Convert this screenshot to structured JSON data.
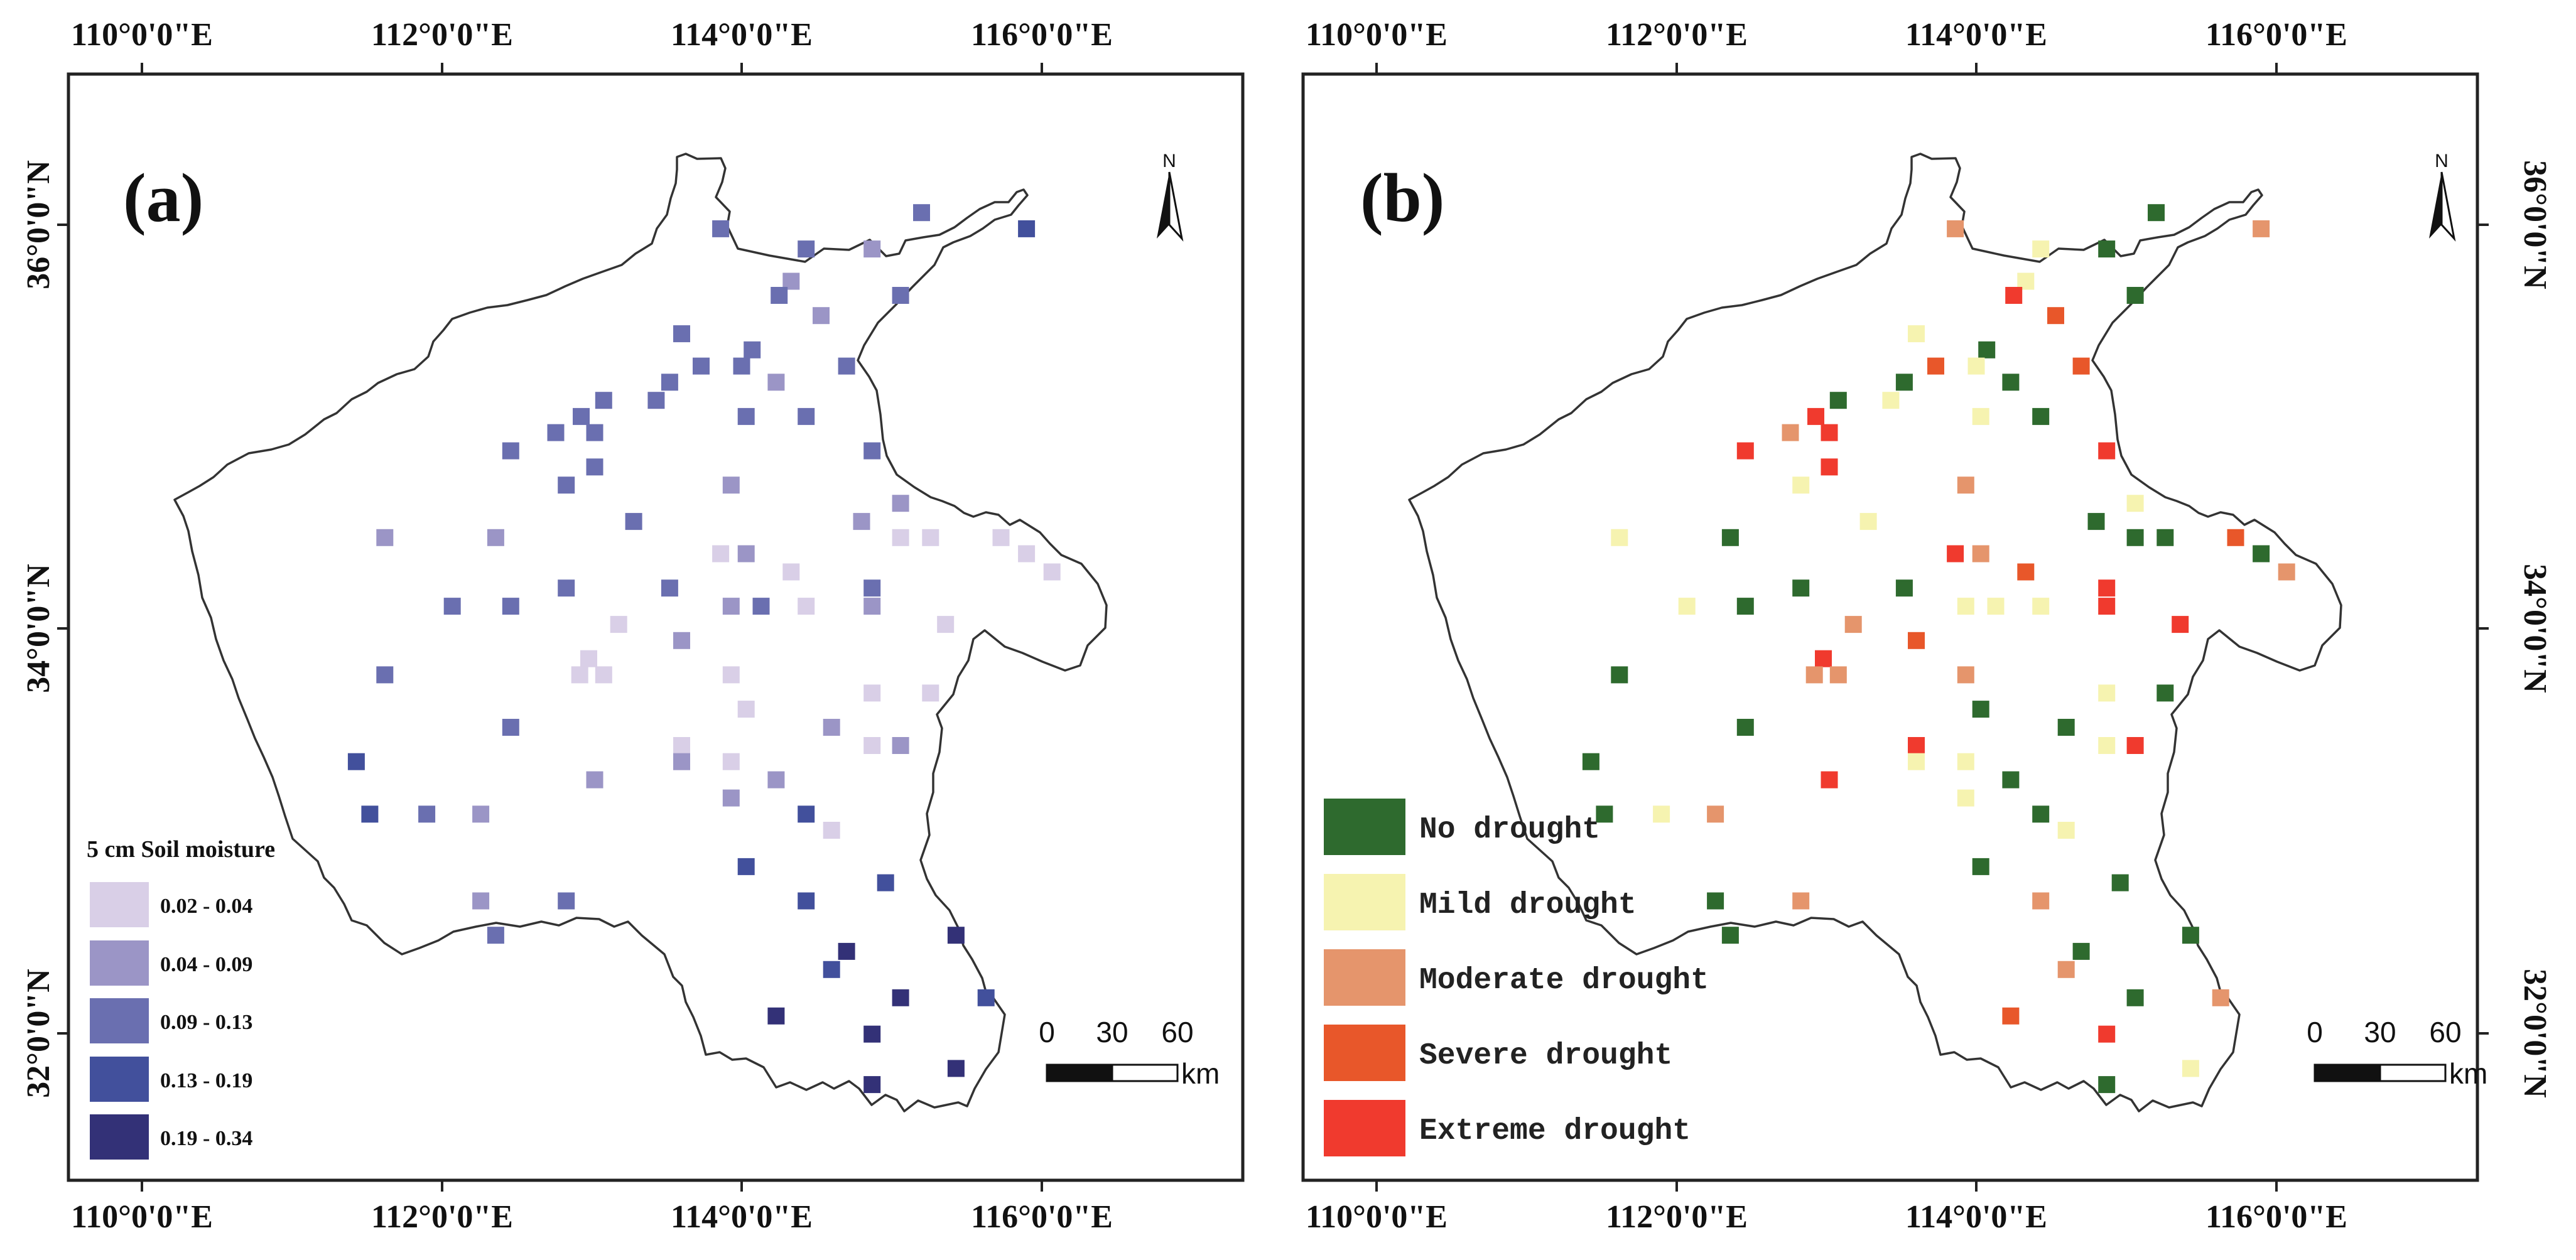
{
  "longitude_labels": [
    "110°0'0\"E",
    "112°0'0\"E",
    "114°0'0\"E",
    "116°0'0\"E"
  ],
  "latitude_labels": [
    "36°0'0\"N",
    "34°0'0\"N",
    "32°0'0\"N"
  ],
  "panel_a": {
    "letter": "(a)",
    "legend_title": "5 cm Soil moisture",
    "classes": [
      {
        "label": "0.02 - 0.04",
        "color": "#d9cfe7"
      },
      {
        "label": "0.04 - 0.09",
        "color": "#9b95c6"
      },
      {
        "label": "0.09 - 0.13",
        "color": "#6a6fb0"
      },
      {
        "label": "0.13 - 0.19",
        "color": "#42509c"
      },
      {
        "label": "0.19 - 0.34",
        "color": "#333177"
      }
    ]
  },
  "panel_b": {
    "letter": "(b)",
    "classes": [
      {
        "label": "No drought",
        "color": "#2e6a2e"
      },
      {
        "label": "Mild drought",
        "color": "#f6f3b0"
      },
      {
        "label": "Moderate drought",
        "color": "#e5956c"
      },
      {
        "label": "Severe drought",
        "color": "#e8572a"
      },
      {
        "label": "Extreme drought",
        "color": "#f03a2e"
      }
    ]
  },
  "north_arrow": {
    "label": "N"
  },
  "scale_bar": {
    "ticks": [
      "0",
      "30",
      "60"
    ],
    "unit": "km"
  },
  "stations": [
    {
      "lon": 113.86,
      "lat": 35.98,
      "a": 2,
      "b": 2
    },
    {
      "lon": 114.43,
      "lat": 35.88,
      "a": 2,
      "b": 1
    },
    {
      "lon": 114.87,
      "lat": 35.88,
      "a": 1,
      "b": 0
    },
    {
      "lon": 115.2,
      "lat": 36.06,
      "a": 2,
      "b": 0
    },
    {
      "lon": 115.9,
      "lat": 35.98,
      "a": 3,
      "b": 2
    },
    {
      "lon": 114.33,
      "lat": 35.72,
      "a": 1,
      "b": 1
    },
    {
      "lon": 114.25,
      "lat": 35.65,
      "a": 2,
      "b": 4
    },
    {
      "lon": 115.06,
      "lat": 35.65,
      "a": 2,
      "b": 0
    },
    {
      "lon": 114.53,
      "lat": 35.55,
      "a": 1,
      "b": 3
    },
    {
      "lon": 113.6,
      "lat": 35.46,
      "a": 2,
      "b": 1
    },
    {
      "lon": 114.07,
      "lat": 35.38,
      "a": 2,
      "b": 0
    },
    {
      "lon": 113.73,
      "lat": 35.3,
      "a": 2,
      "b": 3
    },
    {
      "lon": 114.0,
      "lat": 35.3,
      "a": 2,
      "b": 1
    },
    {
      "lon": 114.7,
      "lat": 35.3,
      "a": 2,
      "b": 3
    },
    {
      "lon": 113.52,
      "lat": 35.22,
      "a": 2,
      "b": 0
    },
    {
      "lon": 114.23,
      "lat": 35.22,
      "a": 1,
      "b": 0
    },
    {
      "lon": 113.08,
      "lat": 35.13,
      "a": 2,
      "b": 0
    },
    {
      "lon": 113.43,
      "lat": 35.13,
      "a": 2,
      "b": 1
    },
    {
      "lon": 112.93,
      "lat": 35.05,
      "a": 2,
      "b": 4
    },
    {
      "lon": 114.03,
      "lat": 35.05,
      "a": 2,
      "b": 1
    },
    {
      "lon": 114.43,
      "lat": 35.05,
      "a": 2,
      "b": 0
    },
    {
      "lon": 112.76,
      "lat": 34.97,
      "a": 2,
      "b": 2
    },
    {
      "lon": 113.02,
      "lat": 34.97,
      "a": 2,
      "b": 4
    },
    {
      "lon": 112.46,
      "lat": 34.88,
      "a": 2,
      "b": 4
    },
    {
      "lon": 114.87,
      "lat": 34.88,
      "a": 2,
      "b": 4
    },
    {
      "lon": 113.02,
      "lat": 34.8,
      "a": 2,
      "b": 4
    },
    {
      "lon": 112.83,
      "lat": 34.71,
      "a": 2,
      "b": 1
    },
    {
      "lon": 113.93,
      "lat": 34.71,
      "a": 1,
      "b": 2
    },
    {
      "lon": 115.06,
      "lat": 34.62,
      "a": 1,
      "b": 1
    },
    {
      "lon": 113.28,
      "lat": 34.53,
      "a": 2,
      "b": 1
    },
    {
      "lon": 114.8,
      "lat": 34.53,
      "a": 1,
      "b": 0
    },
    {
      "lon": 111.62,
      "lat": 34.45,
      "a": 1,
      "b": 1
    },
    {
      "lon": 112.36,
      "lat": 34.45,
      "a": 1,
      "b": 0
    },
    {
      "lon": 115.06,
      "lat": 34.45,
      "a": 0,
      "b": 0
    },
    {
      "lon": 115.26,
      "lat": 34.45,
      "a": 0,
      "b": 0
    },
    {
      "lon": 115.73,
      "lat": 34.45,
      "a": 0,
      "b": 3
    },
    {
      "lon": 113.86,
      "lat": 34.37,
      "a": 0,
      "b": 4
    },
    {
      "lon": 114.03,
      "lat": 34.37,
      "a": 1,
      "b": 2
    },
    {
      "lon": 115.9,
      "lat": 34.37,
      "a": 0,
      "b": 0
    },
    {
      "lon": 114.33,
      "lat": 34.28,
      "a": 0,
      "b": 3
    },
    {
      "lon": 116.07,
      "lat": 34.28,
      "a": 0,
      "b": 2
    },
    {
      "lon": 112.83,
      "lat": 34.2,
      "a": 2,
      "b": 0
    },
    {
      "lon": 113.52,
      "lat": 34.2,
      "a": 2,
      "b": 0
    },
    {
      "lon": 114.87,
      "lat": 34.2,
      "a": 2,
      "b": 4
    },
    {
      "lon": 112.07,
      "lat": 34.11,
      "a": 2,
      "b": 1
    },
    {
      "lon": 112.46,
      "lat": 34.11,
      "a": 2,
      "b": 0
    },
    {
      "lon": 113.93,
      "lat": 34.11,
      "a": 1,
      "b": 1
    },
    {
      "lon": 114.13,
      "lat": 34.11,
      "a": 2,
      "b": 1
    },
    {
      "lon": 114.43,
      "lat": 34.11,
      "a": 0,
      "b": 1
    },
    {
      "lon": 114.87,
      "lat": 34.11,
      "a": 1,
      "b": 4
    },
    {
      "lon": 113.18,
      "lat": 34.02,
      "a": 0,
      "b": 2
    },
    {
      "lon": 115.36,
      "lat": 34.02,
      "a": 0,
      "b": 4
    },
    {
      "lon": 113.6,
      "lat": 33.94,
      "a": 1,
      "b": 3
    },
    {
      "lon": 112.98,
      "lat": 33.85,
      "a": 0,
      "b": 4
    },
    {
      "lon": 111.62,
      "lat": 33.77,
      "a": 2,
      "b": 0
    },
    {
      "lon": 112.92,
      "lat": 33.77,
      "a": 0,
      "b": 2
    },
    {
      "lon": 113.08,
      "lat": 33.77,
      "a": 0,
      "b": 2
    },
    {
      "lon": 113.93,
      "lat": 33.77,
      "a": 0,
      "b": 2
    },
    {
      "lon": 114.87,
      "lat": 33.68,
      "a": 0,
      "b": 1
    },
    {
      "lon": 115.26,
      "lat": 33.68,
      "a": 0,
      "b": 0
    },
    {
      "lon": 114.03,
      "lat": 33.6,
      "a": 0,
      "b": 0
    },
    {
      "lon": 112.46,
      "lat": 33.51,
      "a": 2,
      "b": 0
    },
    {
      "lon": 114.6,
      "lat": 33.51,
      "a": 1,
      "b": 0
    },
    {
      "lon": 113.6,
      "lat": 33.42,
      "a": 0,
      "b": 4
    },
    {
      "lon": 114.87,
      "lat": 33.42,
      "a": 0,
      "b": 1
    },
    {
      "lon": 115.06,
      "lat": 33.42,
      "a": 1,
      "b": 4
    },
    {
      "lon": 111.43,
      "lat": 33.34,
      "a": 3,
      "b": 0
    },
    {
      "lon": 113.6,
      "lat": 33.34,
      "a": 1,
      "b": 1
    },
    {
      "lon": 113.93,
      "lat": 33.34,
      "a": 0,
      "b": 1
    },
    {
      "lon": 113.02,
      "lat": 33.25,
      "a": 1,
      "b": 4
    },
    {
      "lon": 114.23,
      "lat": 33.25,
      "a": 1,
      "b": 0
    },
    {
      "lon": 113.93,
      "lat": 33.16,
      "a": 1,
      "b": 1
    },
    {
      "lon": 111.52,
      "lat": 33.08,
      "a": 3,
      "b": 0
    },
    {
      "lon": 111.9,
      "lat": 33.08,
      "a": 2,
      "b": 1
    },
    {
      "lon": 112.26,
      "lat": 33.08,
      "a": 1,
      "b": 2
    },
    {
      "lon": 114.43,
      "lat": 33.08,
      "a": 3,
      "b": 0
    },
    {
      "lon": 114.6,
      "lat": 33.0,
      "a": 0,
      "b": 1
    },
    {
      "lon": 114.03,
      "lat": 32.82,
      "a": 3,
      "b": 0
    },
    {
      "lon": 114.96,
      "lat": 32.74,
      "a": 3,
      "b": 0
    },
    {
      "lon": 112.26,
      "lat": 32.65,
      "a": 1,
      "b": 0
    },
    {
      "lon": 112.83,
      "lat": 32.65,
      "a": 2,
      "b": 2
    },
    {
      "lon": 114.43,
      "lat": 32.65,
      "a": 3,
      "b": 2
    },
    {
      "lon": 112.36,
      "lat": 32.48,
      "a": 2,
      "b": 0
    },
    {
      "lon": 115.43,
      "lat": 32.48,
      "a": 4,
      "b": 0
    },
    {
      "lon": 114.7,
      "lat": 32.4,
      "a": 4,
      "b": 0
    },
    {
      "lon": 114.6,
      "lat": 32.31,
      "a": 3,
      "b": 2
    },
    {
      "lon": 115.06,
      "lat": 32.17,
      "a": 4,
      "b": 0
    },
    {
      "lon": 115.63,
      "lat": 32.17,
      "a": 3,
      "b": 2
    },
    {
      "lon": 114.23,
      "lat": 32.08,
      "a": 4,
      "b": 3
    },
    {
      "lon": 114.87,
      "lat": 31.99,
      "a": 4,
      "b": 4
    },
    {
      "lon": 115.43,
      "lat": 31.82,
      "a": 4,
      "b": 1
    },
    {
      "lon": 114.87,
      "lat": 31.74,
      "a": 4,
      "b": 0
    }
  ]
}
